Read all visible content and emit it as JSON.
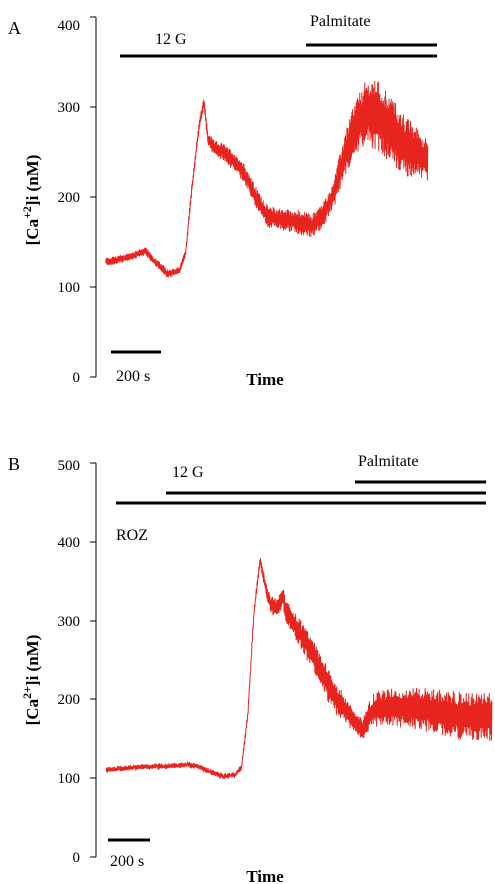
{
  "colors": {
    "trace": "#e8241f",
    "axis": "#000000"
  },
  "chart_data": [
    {
      "type": "line",
      "panel": "A",
      "title": "",
      "xlabel": "Time",
      "ylabel_main": "[Ca",
      "ylabel_sup": "+2",
      "ylabel_tail": "]i (nM)",
      "ylim": [
        0,
        400
      ],
      "yticks": [
        "0",
        "100",
        "200",
        "300",
        "400"
      ],
      "scale_bar_label": "200 s",
      "scale_bar_seconds": 200,
      "xlim": [
        0,
        1400
      ],
      "treatments": [
        {
          "label": "12 G",
          "start": 50,
          "end": 1350
        },
        {
          "label": "Palmitate",
          "start": 850,
          "end": 1350
        }
      ],
      "series": [
        {
          "keypoints": [
            [
              40,
              128
            ],
            [
              120,
              132
            ],
            [
              200,
              140
            ],
            [
              240,
              128
            ],
            [
              290,
              115
            ],
            [
              340,
              118
            ],
            [
              365,
              138
            ],
            [
              390,
              210
            ],
            [
              420,
              280
            ],
            [
              440,
              305
            ],
            [
              455,
              265
            ],
            [
              480,
              255
            ],
            [
              520,
              250
            ],
            [
              560,
              240
            ],
            [
              600,
              228
            ],
            [
              650,
              200
            ],
            [
              700,
              178
            ],
            [
              760,
              175
            ],
            [
              820,
              172
            ],
            [
              880,
              168
            ],
            [
              930,
              182
            ],
            [
              970,
              205
            ],
            [
              1010,
              245
            ],
            [
              1050,
              275
            ],
            [
              1100,
              295
            ],
            [
              1150,
              290
            ],
            [
              1200,
              275
            ],
            [
              1250,
              258
            ],
            [
              1300,
              250
            ],
            [
              1350,
              240
            ]
          ],
          "noise": [
            [
              40,
              4
            ],
            [
              360,
              4
            ],
            [
              440,
              6
            ],
            [
              560,
              10
            ],
            [
              760,
              12
            ],
            [
              960,
              14
            ],
            [
              1040,
              28
            ],
            [
              1150,
              40
            ],
            [
              1260,
              34
            ],
            [
              1350,
              22
            ]
          ]
        }
      ]
    },
    {
      "type": "line",
      "panel": "B",
      "title": "",
      "xlabel": "Time",
      "ylabel_main": "[Ca",
      "ylabel_sup": "2+",
      "ylabel_tail": "]i (nM)",
      "ylim": [
        0,
        500
      ],
      "yticks": [
        "0",
        "100",
        "200",
        "300",
        "400",
        "500"
      ],
      "scale_bar_label": "200 s",
      "scale_bar_seconds": 200,
      "xlim": [
        0,
        1950
      ],
      "treatments": [
        {
          "label": "ROZ",
          "start": 50,
          "end": 1950
        },
        {
          "label": "12 G",
          "start": 330,
          "end": 1950
        },
        {
          "label": "Palmitate",
          "start": 1350,
          "end": 1950
        }
      ],
      "series": [
        {
          "keypoints": [
            [
              50,
              110
            ],
            [
              150,
              113
            ],
            [
              250,
              115
            ],
            [
              350,
              115
            ],
            [
              450,
              117
            ],
            [
              500,
              115
            ],
            [
              560,
              108
            ],
            [
              620,
              102
            ],
            [
              680,
              104
            ],
            [
              710,
              115
            ],
            [
              740,
              180
            ],
            [
              770,
              310
            ],
            [
              800,
              378
            ],
            [
              820,
              350
            ],
            [
              850,
              320
            ],
            [
              880,
              315
            ],
            [
              910,
              330
            ],
            [
              930,
              310
            ],
            [
              980,
              290
            ],
            [
              1040,
              265
            ],
            [
              1100,
              235
            ],
            [
              1160,
              205
            ],
            [
              1220,
              185
            ],
            [
              1270,
              168
            ],
            [
              1300,
              162
            ],
            [
              1320,
              175
            ],
            [
              1360,
              188
            ],
            [
              1450,
              190
            ],
            [
              1550,
              188
            ],
            [
              1650,
              185
            ],
            [
              1750,
              180
            ],
            [
              1850,
              178
            ],
            [
              1930,
              178
            ]
          ],
          "noise": [
            [
              50,
              3
            ],
            [
              700,
              3
            ],
            [
              800,
              6
            ],
            [
              880,
              12
            ],
            [
              1000,
              18
            ],
            [
              1150,
              22
            ],
            [
              1280,
              12
            ],
            [
              1350,
              22
            ],
            [
              1600,
              28
            ],
            [
              1800,
              30
            ],
            [
              1930,
              30
            ]
          ]
        }
      ]
    }
  ]
}
